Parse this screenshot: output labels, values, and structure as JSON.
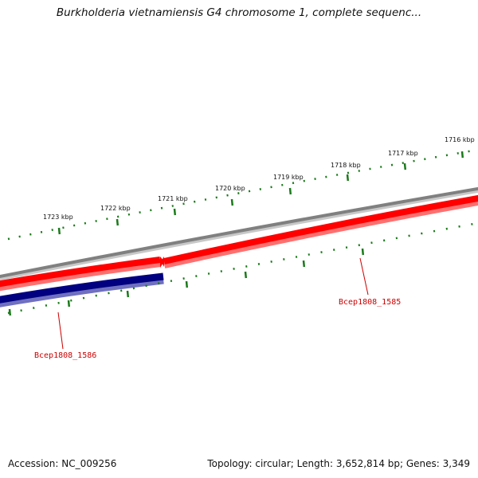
{
  "title": "Burkholderia vietnamiensis G4 chromosome 1, complete sequenc...",
  "kbp_ticks": [
    {
      "label": "1716 kbp"
    },
    {
      "label": "1717 kbp"
    },
    {
      "label": "1718 kbp"
    },
    {
      "label": "1719 kbp"
    },
    {
      "label": "1720 kbp"
    },
    {
      "label": "1721 kbp"
    },
    {
      "label": "1722 kbp"
    },
    {
      "label": "1723 kbp"
    }
  ],
  "genes": [
    {
      "name": "Bcep1808_1585",
      "strand": "forward",
      "color": "#ff0000"
    },
    {
      "name": "Bcep1808_1586",
      "strand": "reverse",
      "color": "#000080"
    }
  ],
  "colors": {
    "backbone": "#808080",
    "forward_gene": "#ff0000",
    "reverse_gene": "#000080",
    "tick": "#1a7a1a",
    "label": "#cc0000"
  },
  "footer": {
    "accession": "Accession: NC_009256",
    "summary": "Topology: circular; Length: 3,652,814 bp; Genes: 3,349"
  }
}
